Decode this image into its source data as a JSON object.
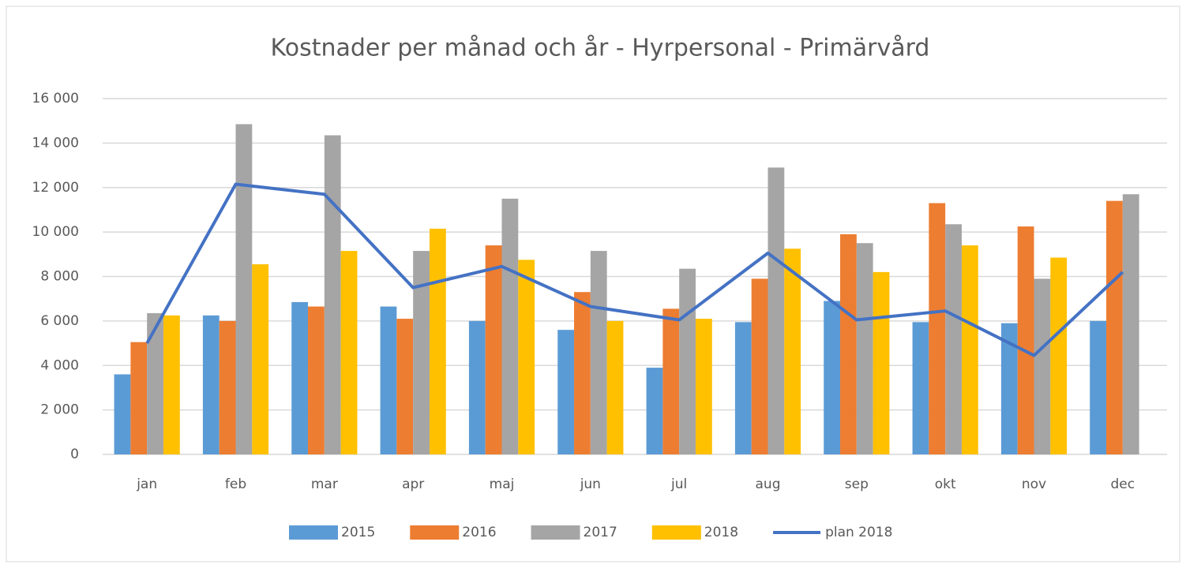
{
  "chart_data": {
    "type": "bar",
    "title": "Kostnader per månad och år - Hyrpersonal - Primärvård",
    "categories": [
      "jan",
      "feb",
      "mar",
      "apr",
      "maj",
      "jun",
      "jul",
      "aug",
      "sep",
      "okt",
      "nov",
      "dec"
    ],
    "series": [
      {
        "name": "2015",
        "type": "bar",
        "color": "#5b9bd5",
        "values": [
          3600,
          6250,
          6850,
          6650,
          6000,
          5600,
          3900,
          5950,
          6900,
          5950,
          5900,
          6000
        ]
      },
      {
        "name": "2016",
        "type": "bar",
        "color": "#ed7d31",
        "values": [
          5050,
          6000,
          6650,
          6100,
          9400,
          7300,
          6550,
          7900,
          9900,
          11300,
          10250,
          11400
        ]
      },
      {
        "name": "2017",
        "type": "bar",
        "color": "#a5a5a5",
        "values": [
          6350,
          14850,
          14350,
          9150,
          11500,
          9150,
          8350,
          12900,
          9500,
          10350,
          7900,
          11700
        ]
      },
      {
        "name": "2018",
        "type": "bar",
        "color": "#ffc000",
        "values": [
          6250,
          8550,
          9150,
          10150,
          8750,
          6000,
          6100,
          9250,
          8200,
          9400,
          8850,
          null
        ]
      },
      {
        "name": "plan 2018",
        "type": "line",
        "color": "#4472c4",
        "values": [
          5000,
          12150,
          11700,
          7500,
          8450,
          6650,
          6050,
          9050,
          6050,
          6450,
          4450,
          8200
        ]
      }
    ],
    "ylim": [
      0,
      16000
    ],
    "yticks": [
      0,
      {
        "value": 2000,
        "label": "2 000"
      },
      {
        "value": 4000,
        "label": "4 000"
      },
      {
        "value": 6000,
        "label": "6 000"
      },
      {
        "value": 8000,
        "label": "8 000"
      },
      {
        "value": 10000,
        "label": "10 000"
      },
      {
        "value": 12000,
        "label": "12 000"
      },
      {
        "value": 14000,
        "label": "14 000"
      },
      {
        "value": 16000,
        "label": "16 000"
      }
    ],
    "grid": true,
    "legend": "bottom"
  }
}
